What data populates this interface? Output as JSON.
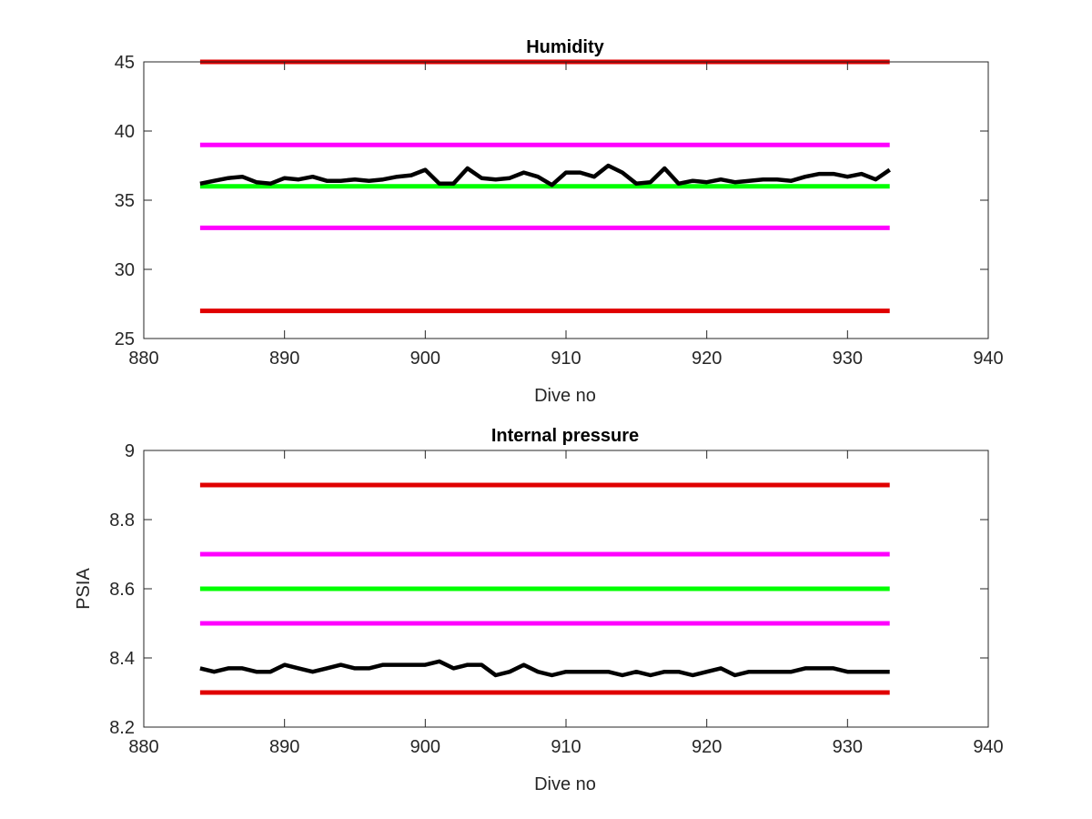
{
  "chart_data": [
    {
      "type": "line",
      "title": "Humidity",
      "xlabel": "Dive no",
      "ylabel": "",
      "xlim": [
        880,
        940
      ],
      "ylim": [
        25,
        45
      ],
      "xticks": [
        "880",
        "890",
        "900",
        "910",
        "920",
        "930",
        "940"
      ],
      "yticks": [
        "25",
        "30",
        "35",
        "40",
        "45"
      ],
      "grid": false,
      "series": [
        {
          "color": "#e00000",
          "x": [
            884,
            933
          ],
          "values": [
            45,
            45
          ]
        },
        {
          "color": "#ff00ff",
          "x": [
            884,
            933
          ],
          "values": [
            39,
            39
          ]
        },
        {
          "color": "#00ff00",
          "x": [
            884,
            933
          ],
          "values": [
            36,
            36
          ]
        },
        {
          "color": "#ff00ff",
          "x": [
            884,
            933
          ],
          "values": [
            33,
            33
          ]
        },
        {
          "color": "#e00000",
          "x": [
            884,
            933
          ],
          "values": [
            27,
            27
          ]
        },
        {
          "color": "#000000",
          "x": [
            884,
            885,
            886,
            887,
            888,
            889,
            890,
            891,
            892,
            893,
            894,
            895,
            896,
            897,
            898,
            899,
            900,
            901,
            902,
            903,
            904,
            905,
            906,
            907,
            908,
            909,
            910,
            911,
            912,
            913,
            914,
            915,
            916,
            917,
            918,
            919,
            920,
            921,
            922,
            923,
            924,
            925,
            926,
            927,
            928,
            929,
            930,
            931,
            932,
            933
          ],
          "values": [
            36.2,
            36.4,
            36.6,
            36.7,
            36.3,
            36.2,
            36.6,
            36.5,
            36.7,
            36.4,
            36.4,
            36.5,
            36.4,
            36.5,
            36.7,
            36.8,
            37.2,
            36.2,
            36.2,
            37.3,
            36.6,
            36.5,
            36.6,
            37.0,
            36.7,
            36.1,
            37.0,
            37.0,
            36.7,
            37.5,
            37.0,
            36.2,
            36.3,
            37.3,
            36.2,
            36.4,
            36.3,
            36.5,
            36.3,
            36.4,
            36.5,
            36.5,
            36.4,
            36.7,
            36.9,
            36.9,
            36.7,
            36.9,
            36.5,
            37.2
          ]
        }
      ]
    },
    {
      "type": "line",
      "title": "Internal pressure",
      "xlabel": "Dive no",
      "ylabel": "PSIA",
      "xlim": [
        880,
        940
      ],
      "ylim": [
        8.2,
        9.0
      ],
      "xticks": [
        "880",
        "890",
        "900",
        "910",
        "920",
        "930",
        "940"
      ],
      "yticks": [
        "8.2",
        "8.4",
        "8.6",
        "8.8",
        "9"
      ],
      "grid": false,
      "series": [
        {
          "color": "#e00000",
          "x": [
            884,
            933
          ],
          "values": [
            8.9,
            8.9
          ]
        },
        {
          "color": "#ff00ff",
          "x": [
            884,
            933
          ],
          "values": [
            8.7,
            8.7
          ]
        },
        {
          "color": "#00ff00",
          "x": [
            884,
            933
          ],
          "values": [
            8.6,
            8.6
          ]
        },
        {
          "color": "#ff00ff",
          "x": [
            884,
            933
          ],
          "values": [
            8.5,
            8.5
          ]
        },
        {
          "color": "#e00000",
          "x": [
            884,
            933
          ],
          "values": [
            8.3,
            8.3
          ]
        },
        {
          "color": "#000000",
          "x": [
            884,
            885,
            886,
            887,
            888,
            889,
            890,
            891,
            892,
            893,
            894,
            895,
            896,
            897,
            898,
            899,
            900,
            901,
            902,
            903,
            904,
            905,
            906,
            907,
            908,
            909,
            910,
            911,
            912,
            913,
            914,
            915,
            916,
            917,
            918,
            919,
            920,
            921,
            922,
            923,
            924,
            925,
            926,
            927,
            928,
            929,
            930,
            931,
            932,
            933
          ],
          "values": [
            8.37,
            8.36,
            8.37,
            8.37,
            8.36,
            8.36,
            8.38,
            8.37,
            8.36,
            8.37,
            8.38,
            8.37,
            8.37,
            8.38,
            8.38,
            8.38,
            8.38,
            8.39,
            8.37,
            8.38,
            8.38,
            8.35,
            8.36,
            8.38,
            8.36,
            8.35,
            8.36,
            8.36,
            8.36,
            8.36,
            8.35,
            8.36,
            8.35,
            8.36,
            8.36,
            8.35,
            8.36,
            8.37,
            8.35,
            8.36,
            8.36,
            8.36,
            8.36,
            8.37,
            8.37,
            8.37,
            8.36,
            8.36,
            8.36,
            8.36
          ]
        }
      ]
    }
  ]
}
